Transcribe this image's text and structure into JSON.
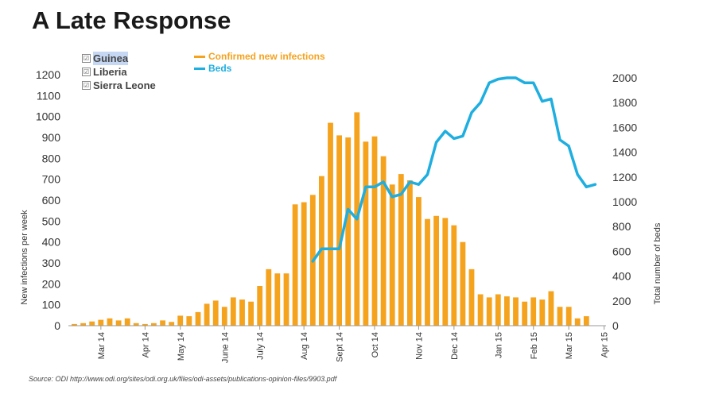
{
  "title": "A Late Response",
  "filters": [
    {
      "label": "Guinea",
      "checked": true,
      "selected": true
    },
    {
      "label": "Liberia",
      "checked": true,
      "selected": false
    },
    {
      "label": "Sierra Leone",
      "checked": true,
      "selected": false
    }
  ],
  "check_glyph": "☑",
  "source": "Source: ODI   http://www.odi.org/sites/odi.org.uk/files/odi-assets/publications-opinion-files/9903.pdf",
  "colors": {
    "bars": "#f5a21d",
    "beds": "#1eaee0"
  },
  "chart_data": {
    "type": "bar",
    "title": "A Late Response",
    "legend": [
      {
        "name": "Confirmed new infections",
        "color": "#f5a21d"
      },
      {
        "name": "Beds",
        "color": "#1eaee0"
      }
    ],
    "ylabel_left": "New infections per week",
    "ylabel_right": "Total number of beds",
    "ylim_left": [
      0,
      1200
    ],
    "ylim_right": [
      0,
      2000
    ],
    "yticks_left": [
      "0",
      "100",
      "200",
      "300",
      "400",
      "500",
      "600",
      "700",
      "800",
      "900",
      "1000",
      "1100",
      "1200"
    ],
    "yticks_right": [
      "0",
      "200",
      "400",
      "600",
      "800",
      "1000",
      "1200",
      "1400",
      "1600",
      "1800",
      "2000"
    ],
    "x_ticks": [
      {
        "label": "Mar 14",
        "index": 3
      },
      {
        "label": "Apr 14",
        "index": 8
      },
      {
        "label": "May 14",
        "index": 12
      },
      {
        "label": "June 14",
        "index": 17
      },
      {
        "label": "July 14",
        "index": 21
      },
      {
        "label": "Aug 14",
        "index": 26
      },
      {
        "label": "Sept 14",
        "index": 30
      },
      {
        "label": "Oct 14",
        "index": 34
      },
      {
        "label": "Nov 14",
        "index": 39
      },
      {
        "label": "Dec 14",
        "index": 43
      },
      {
        "label": "Jan 15",
        "index": 48
      },
      {
        "label": "Feb 15",
        "index": 52
      },
      {
        "label": "Mar 15",
        "index": 56
      },
      {
        "label": "Apr 15",
        "index": 60
      }
    ],
    "n_weeks": 61,
    "series": [
      {
        "name": "Confirmed new infections",
        "type": "bar",
        "axis": "left",
        "values": [
          8,
          12,
          20,
          28,
          35,
          25,
          35,
          12,
          8,
          12,
          25,
          18,
          48,
          45,
          65,
          105,
          120,
          90,
          135,
          125,
          115,
          190,
          270,
          250,
          250,
          580,
          590,
          625,
          715,
          970,
          910,
          900,
          1020,
          880,
          905,
          810,
          675,
          725,
          695,
          615,
          510,
          525,
          515,
          480,
          400,
          270,
          150,
          135,
          150,
          140,
          135,
          115,
          135,
          125,
          165,
          90,
          90,
          35,
          45,
          0,
          0
        ]
      },
      {
        "name": "Beds",
        "type": "line",
        "axis": "right",
        "start_index": 27,
        "values": [
          520,
          620,
          620,
          620,
          940,
          860,
          1120,
          1120,
          1160,
          1040,
          1060,
          1160,
          1140,
          1220,
          1480,
          1570,
          1510,
          1530,
          1720,
          1800,
          1960,
          1990,
          2000,
          2000,
          1960,
          1960,
          1810,
          1830,
          1500,
          1450,
          1220,
          1120,
          1140
        ]
      }
    ]
  }
}
